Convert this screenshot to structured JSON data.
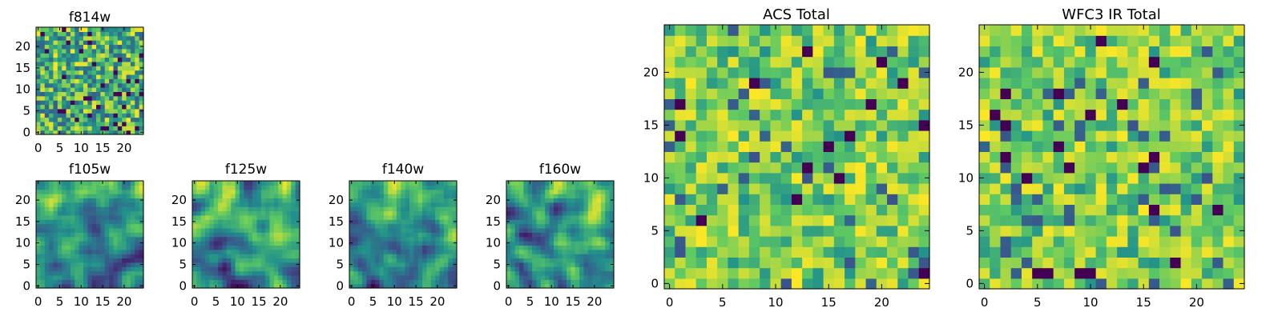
{
  "chart_data": [
    {
      "type": "heatmap",
      "title": "f814w",
      "grid_size": 25,
      "xlim": [
        0,
        25
      ],
      "ylim": [
        0,
        25
      ],
      "xticks": [
        "0",
        "5",
        "10",
        "15",
        "20"
      ],
      "yticks": [
        "0",
        "5",
        "10",
        "15",
        "20"
      ],
      "pattern": "noise",
      "seed": 11,
      "xlabel": "",
      "ylabel": ""
    },
    {
      "type": "heatmap",
      "title": "f105w",
      "grid_size": 25,
      "xlim": [
        0,
        25
      ],
      "ylim": [
        0,
        25
      ],
      "xticks": [
        "0",
        "5",
        "10",
        "15",
        "20"
      ],
      "yticks": [
        "0",
        "5",
        "10",
        "15",
        "20"
      ],
      "pattern": "smooth",
      "seed": 21,
      "xlabel": "",
      "ylabel": ""
    },
    {
      "type": "heatmap",
      "title": "f125w",
      "grid_size": 25,
      "xlim": [
        0,
        25
      ],
      "ylim": [
        0,
        25
      ],
      "xticks": [
        "0",
        "5",
        "10",
        "15",
        "20"
      ],
      "yticks": [
        "0",
        "5",
        "10",
        "15",
        "20"
      ],
      "pattern": "smooth",
      "seed": 22,
      "xlabel": "",
      "ylabel": ""
    },
    {
      "type": "heatmap",
      "title": "f140w",
      "grid_size": 25,
      "xlim": [
        0,
        25
      ],
      "ylim": [
        0,
        25
      ],
      "xticks": [
        "0",
        "5",
        "10",
        "15",
        "20"
      ],
      "yticks": [
        "0",
        "5",
        "10",
        "15",
        "20"
      ],
      "pattern": "smooth",
      "seed": 23,
      "xlabel": "",
      "ylabel": ""
    },
    {
      "type": "heatmap",
      "title": "f160w",
      "grid_size": 25,
      "xlim": [
        0,
        25
      ],
      "ylim": [
        0,
        25
      ],
      "xticks": [
        "0",
        "5",
        "10",
        "15",
        "20"
      ],
      "yticks": [
        "0",
        "5",
        "10",
        "15",
        "20"
      ],
      "pattern": "smooth",
      "seed": 24,
      "xlabel": "",
      "ylabel": ""
    },
    {
      "type": "heatmap",
      "title": "ACS Total",
      "grid_size": 25,
      "xlim": [
        0,
        25
      ],
      "ylim": [
        0,
        25
      ],
      "xticks": [
        "0",
        "5",
        "10",
        "15",
        "20"
      ],
      "yticks": [
        "0",
        "5",
        "10",
        "15",
        "20"
      ],
      "pattern": "total",
      "seed": 31,
      "xlabel": "",
      "ylabel": ""
    },
    {
      "type": "heatmap",
      "title": "WFC3 IR Total",
      "grid_size": 25,
      "xlim": [
        0,
        25
      ],
      "ylim": [
        0,
        25
      ],
      "xticks": [
        "0",
        "5",
        "10",
        "15",
        "20"
      ],
      "yticks": [
        "0",
        "5",
        "10",
        "15",
        "20"
      ],
      "pattern": "total",
      "seed": 41,
      "xlabel": "",
      "ylabel": ""
    }
  ],
  "colormap": {
    "name": "viridis",
    "stops": [
      "#440154",
      "#3b528b",
      "#21918c",
      "#5ec962",
      "#fde725"
    ]
  },
  "axis_color": "#000000"
}
